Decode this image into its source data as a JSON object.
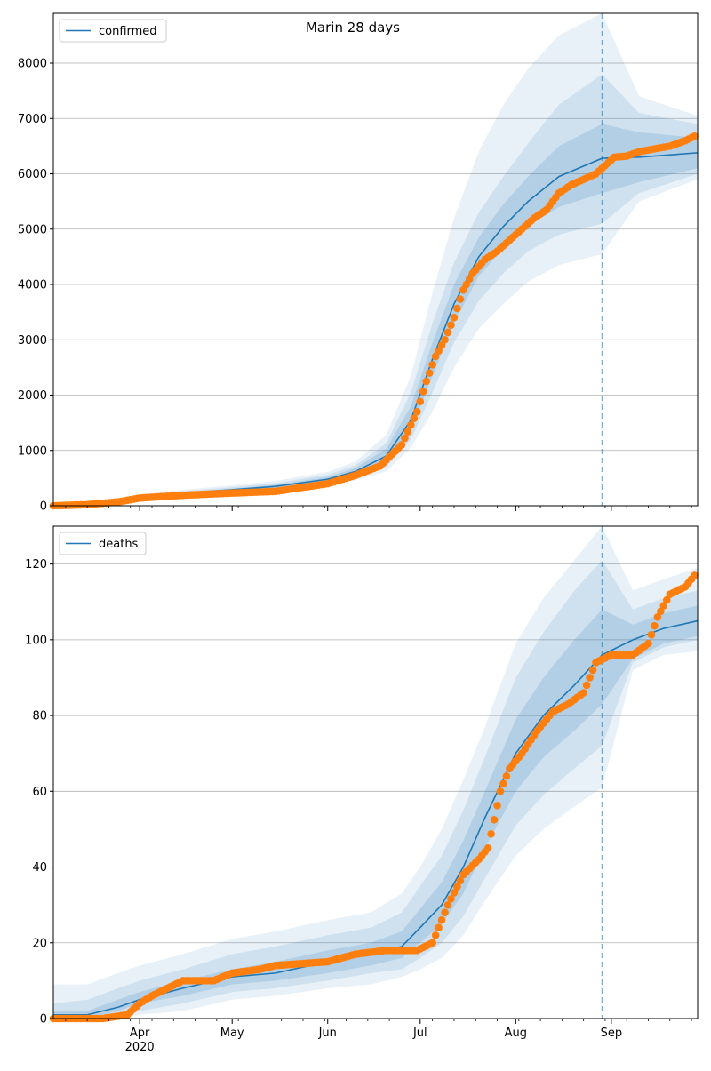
{
  "title": "Marin 28 days",
  "chart_data": [
    {
      "type": "line",
      "legend": {
        "label": "confirmed",
        "placement": "upper-left"
      },
      "ylim": [
        0,
        8900
      ],
      "yticks": [
        0,
        1000,
        2000,
        3000,
        4000,
        5000,
        6000,
        7000,
        8000
      ],
      "forecast_start": "2020-08-29",
      "model": {
        "x": [
          "2020-03-04",
          "2020-03-20",
          "2020-04-01",
          "2020-04-15",
          "2020-05-01",
          "2020-05-15",
          "2020-06-01",
          "2020-06-10",
          "2020-06-20",
          "2020-06-28",
          "2020-07-05",
          "2020-07-12",
          "2020-07-20",
          "2020-07-28",
          "2020-08-05",
          "2020-08-15",
          "2020-08-29",
          "2020-09-10",
          "2020-09-29"
        ],
        "median": [
          0,
          30,
          150,
          230,
          290,
          350,
          480,
          620,
          900,
          1550,
          2650,
          3650,
          4500,
          5050,
          5500,
          5950,
          6280,
          6300,
          6380
        ],
        "band_50": [
          [
            0,
            0
          ],
          [
            25,
            35
          ],
          [
            140,
            160
          ],
          [
            215,
            245
          ],
          [
            270,
            310
          ],
          [
            320,
            380
          ],
          [
            440,
            520
          ],
          [
            560,
            680
          ],
          [
            780,
            1030
          ],
          [
            1350,
            1800
          ],
          [
            2350,
            2950
          ],
          [
            3300,
            4000
          ],
          [
            4150,
            4850
          ],
          [
            4650,
            5450
          ],
          [
            5050,
            5950
          ],
          [
            5400,
            6500
          ],
          [
            5650,
            6900
          ],
          [
            5850,
            6750
          ],
          [
            6100,
            6650
          ]
        ],
        "band_80": [
          [
            0,
            0
          ],
          [
            20,
            40
          ],
          [
            125,
            175
          ],
          [
            195,
            265
          ],
          [
            245,
            335
          ],
          [
            290,
            410
          ],
          [
            400,
            560
          ],
          [
            510,
            730
          ],
          [
            700,
            1130
          ],
          [
            1200,
            2050
          ],
          [
            2050,
            3300
          ],
          [
            2950,
            4400
          ],
          [
            3700,
            5300
          ],
          [
            4200,
            5950
          ],
          [
            4600,
            6550
          ],
          [
            4900,
            7250
          ],
          [
            5100,
            7800
          ],
          [
            5650,
            7100
          ],
          [
            6000,
            6900
          ]
        ],
        "band_95": [
          [
            0,
            0
          ],
          [
            15,
            50
          ],
          [
            110,
            195
          ],
          [
            175,
            290
          ],
          [
            220,
            370
          ],
          [
            260,
            450
          ],
          [
            360,
            610
          ],
          [
            460,
            800
          ],
          [
            620,
            1280
          ],
          [
            1050,
            2350
          ],
          [
            1700,
            3850
          ],
          [
            2500,
            5200
          ],
          [
            3200,
            6400
          ],
          [
            3650,
            7250
          ],
          [
            4050,
            7900
          ],
          [
            4350,
            8500
          ],
          [
            4550,
            8900
          ],
          [
            5500,
            7400
          ],
          [
            5900,
            7050
          ]
        ]
      },
      "observed": {
        "x": [
          "2020-03-04",
          "2020-03-15",
          "2020-03-25",
          "2020-04-01",
          "2020-04-15",
          "2020-05-01",
          "2020-05-15",
          "2020-06-01",
          "2020-06-10",
          "2020-06-18",
          "2020-06-25",
          "2020-06-30",
          "2020-07-03",
          "2020-07-06",
          "2020-07-09",
          "2020-07-12",
          "2020-07-15",
          "2020-07-18",
          "2020-07-22",
          "2020-07-26",
          "2020-07-30",
          "2020-08-03",
          "2020-08-07",
          "2020-08-11",
          "2020-08-15",
          "2020-08-19",
          "2020-08-23",
          "2020-08-27",
          "2020-08-30",
          "2020-09-02",
          "2020-09-06",
          "2020-09-10",
          "2020-09-15",
          "2020-09-20",
          "2020-09-25",
          "2020-09-28"
        ],
        "values": [
          0,
          20,
          70,
          140,
          190,
          230,
          260,
          400,
          550,
          720,
          1100,
          1700,
          2250,
          2700,
          3000,
          3400,
          3900,
          4200,
          4450,
          4600,
          4800,
          5000,
          5200,
          5350,
          5650,
          5800,
          5900,
          6000,
          6150,
          6300,
          6320,
          6400,
          6450,
          6500,
          6600,
          6680
        ]
      }
    },
    {
      "type": "line",
      "legend": {
        "label": "deaths",
        "placement": "upper-left"
      },
      "ylim": [
        0,
        130
      ],
      "yticks": [
        0,
        20,
        40,
        60,
        80,
        100,
        120
      ],
      "xticks": [
        "Apr",
        "May",
        "Jun",
        "Jul",
        "Aug",
        "Sep"
      ],
      "xtick_dates": [
        "2020-04-01",
        "2020-05-01",
        "2020-06-01",
        "2020-07-01",
        "2020-08-01",
        "2020-09-01"
      ],
      "xlabel_year": "2020",
      "xlim": [
        "2020-03-04",
        "2020-09-29"
      ],
      "forecast_start": "2020-08-29",
      "model": {
        "x": [
          "2020-03-04",
          "2020-03-15",
          "2020-03-25",
          "2020-04-01",
          "2020-04-15",
          "2020-05-01",
          "2020-05-15",
          "2020-06-01",
          "2020-06-15",
          "2020-06-25",
          "2020-07-01",
          "2020-07-08",
          "2020-07-15",
          "2020-07-22",
          "2020-08-01",
          "2020-08-10",
          "2020-08-20",
          "2020-08-29",
          "2020-09-08",
          "2020-09-18",
          "2020-09-29"
        ],
        "median": [
          1,
          1,
          3,
          5,
          8,
          11,
          12,
          15,
          17,
          19,
          24,
          30,
          40,
          53,
          70,
          80,
          88,
          96,
          100,
          103,
          105
        ],
        "band_50": [
          [
            0,
            2
          ],
          [
            0,
            2
          ],
          [
            2,
            5
          ],
          [
            4,
            7
          ],
          [
            6,
            10
          ],
          [
            9,
            13
          ],
          [
            10,
            15
          ],
          [
            12,
            18
          ],
          [
            14,
            20
          ],
          [
            16,
            23
          ],
          [
            20,
            29
          ],
          [
            25,
            36
          ],
          [
            33,
            47
          ],
          [
            45,
            60
          ],
          [
            60,
            79
          ],
          [
            69,
            90
          ],
          [
            76,
            100
          ],
          [
            83,
            108
          ],
          [
            95,
            104
          ],
          [
            99,
            107
          ],
          [
            101,
            109
          ]
        ],
        "band_80": [
          [
            0,
            4
          ],
          [
            0,
            5
          ],
          [
            1,
            8
          ],
          [
            2,
            10
          ],
          [
            4,
            13
          ],
          [
            7,
            17
          ],
          [
            8,
            19
          ],
          [
            10,
            22
          ],
          [
            12,
            24
          ],
          [
            13,
            28
          ],
          [
            16,
            35
          ],
          [
            20,
            43
          ],
          [
            27,
            55
          ],
          [
            37,
            69
          ],
          [
            51,
            90
          ],
          [
            59,
            102
          ],
          [
            66,
            113
          ],
          [
            72,
            121
          ],
          [
            94,
            108
          ],
          [
            98,
            111
          ],
          [
            100,
            113
          ]
        ],
        "band_95": [
          [
            0,
            9
          ],
          [
            0,
            9
          ],
          [
            0,
            12
          ],
          [
            1,
            14
          ],
          [
            2,
            17
          ],
          [
            5,
            21
          ],
          [
            6,
            23
          ],
          [
            8,
            26
          ],
          [
            9,
            28
          ],
          [
            11,
            33
          ],
          [
            13,
            40
          ],
          [
            16,
            50
          ],
          [
            22,
            63
          ],
          [
            31,
            77
          ],
          [
            43,
            99
          ],
          [
            50,
            111
          ],
          [
            56,
            121
          ],
          [
            61,
            130
          ],
          [
            92,
            113
          ],
          [
            96,
            116
          ],
          [
            97,
            119
          ]
        ]
      },
      "observed": {
        "x": [
          "2020-03-04",
          "2020-03-20",
          "2020-03-28",
          "2020-04-01",
          "2020-04-05",
          "2020-04-10",
          "2020-04-15",
          "2020-04-25",
          "2020-05-01",
          "2020-05-10",
          "2020-05-15",
          "2020-06-01",
          "2020-06-10",
          "2020-06-20",
          "2020-06-30",
          "2020-07-05",
          "2020-07-10",
          "2020-07-15",
          "2020-07-20",
          "2020-07-23",
          "2020-07-27",
          "2020-07-30",
          "2020-08-03",
          "2020-08-08",
          "2020-08-13",
          "2020-08-18",
          "2020-08-23",
          "2020-08-27",
          "2020-09-01",
          "2020-09-08",
          "2020-09-13",
          "2020-09-16",
          "2020-09-20",
          "2020-09-25",
          "2020-09-28"
        ],
        "values": [
          0,
          0,
          1,
          4,
          6,
          8,
          10,
          10,
          12,
          13,
          14,
          15,
          17,
          18,
          18,
          20,
          30,
          38,
          42,
          45,
          60,
          66,
          70,
          76,
          81,
          83,
          86,
          94,
          96,
          96,
          99,
          106,
          112,
          114,
          117
        ]
      }
    }
  ]
}
